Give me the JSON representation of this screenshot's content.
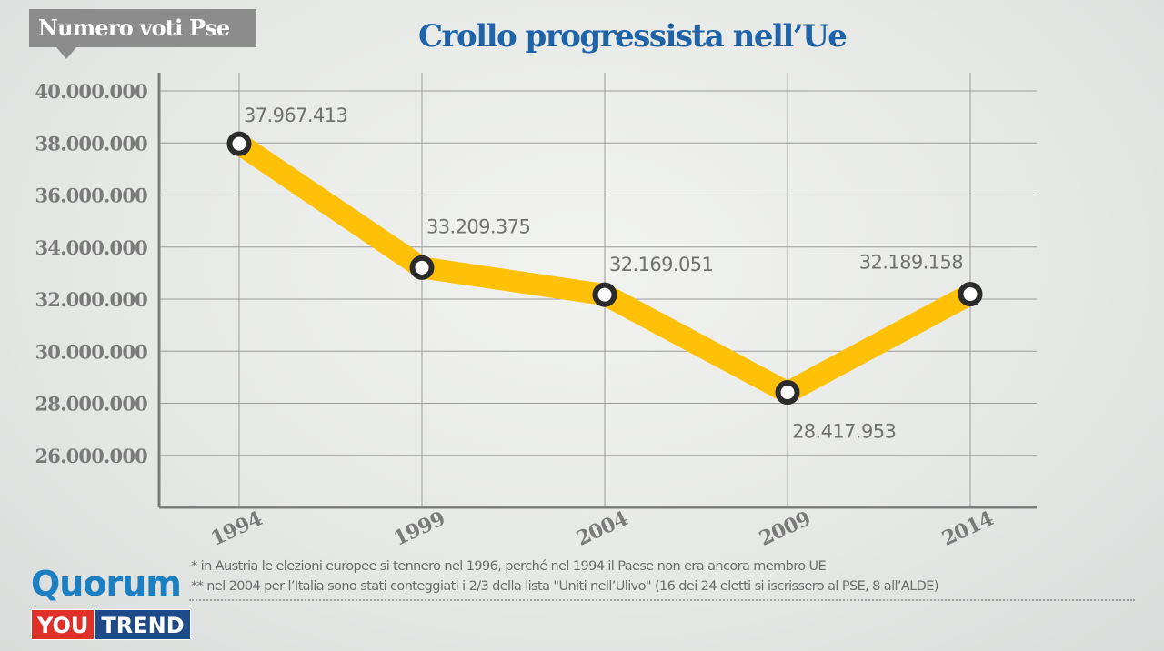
{
  "header": {
    "y_label": "Numero voti Pse",
    "title": "Crollo progressista nell’Ue"
  },
  "colors": {
    "line": "#ffc107",
    "marker_fill": "#ffffff",
    "marker_stroke": "#2b2b2b",
    "grid": "#9a9a9a",
    "axis": "#7d7d7d",
    "tick_text": "#7a7a7a",
    "value_text": "#707070",
    "title": "#1f63a8"
  },
  "chart_data": {
    "type": "line",
    "title": "Crollo progressista nell’Ue",
    "ylabel": "Numero voti Pse",
    "xlabel": "",
    "categories": [
      "1994",
      "1999",
      "2004",
      "2009",
      "2014"
    ],
    "series": [
      {
        "values": [
          37967413,
          33209375,
          32169051,
          28417953,
          32189158
        ],
        "value_labels": [
          "37.967.413",
          "33.209.375",
          "32.169.051",
          "28.417.953",
          "32.189.158"
        ]
      }
    ],
    "ylim": [
      24000000,
      40000000
    ],
    "yticks": [
      40000000,
      38000000,
      36000000,
      34000000,
      32000000,
      30000000,
      28000000,
      26000000
    ],
    "ytick_labels": [
      "40.000.000",
      "38.000.000",
      "36.000.000",
      "34.000.000",
      "32.000.000",
      "30.000.000",
      "28.000.000",
      "26.000.000"
    ],
    "grid": true,
    "legend": "none"
  },
  "notes": [
    "* in Austria le elezioni europee si tennero nel 1996, perché nel 1994 il Paese non era ancora membro UE",
    "** nel 2004 per l’Italia sono stati conteggiati i 2/3 della lista \"Uniti nell’Ulivo\" (16 dei 24 eletti si iscrissero al PSE, 8 all’ALDE)"
  ],
  "logo": {
    "brand": "Quorum",
    "sub_left": "YOU",
    "sub_right": "TREND"
  }
}
